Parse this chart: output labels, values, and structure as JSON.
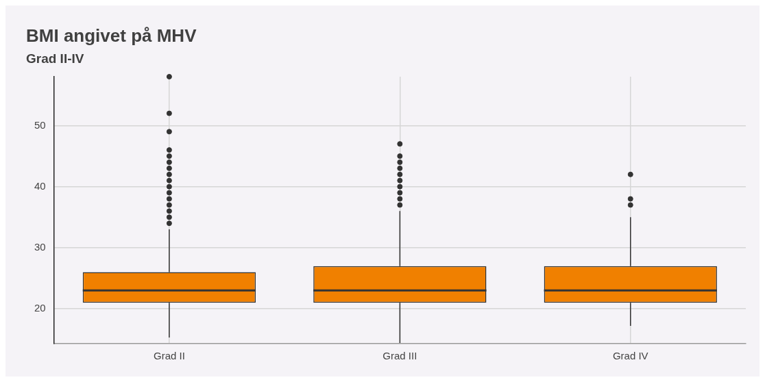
{
  "chart_data": {
    "type": "box",
    "title": "BMI angivet på MHV",
    "subtitle": "Grad II-IV",
    "categories": [
      "Grad II",
      "Grad III",
      "Grad IV"
    ],
    "color": "#f08000",
    "ylim": [
      14.3,
      58
    ],
    "yticks": [
      20,
      30,
      40,
      50
    ],
    "grid": true,
    "legend": false,
    "boxes": [
      {
        "low": 15.3,
        "q1": 21,
        "median": 23,
        "q3": 26,
        "high": 33,
        "outliers": [
          34,
          35,
          36,
          37,
          38,
          39,
          40,
          41,
          42,
          43,
          44,
          45,
          46,
          49,
          52,
          58
        ]
      },
      {
        "low": 14.4,
        "q1": 21,
        "median": 23,
        "q3": 27,
        "high": 36,
        "outliers": [
          37,
          38,
          39,
          40,
          41,
          42,
          43,
          44,
          45,
          47
        ]
      },
      {
        "low": 17.2,
        "q1": 21,
        "median": 23,
        "q3": 27,
        "high": 35,
        "outliers": [
          37,
          38,
          42
        ]
      }
    ]
  }
}
